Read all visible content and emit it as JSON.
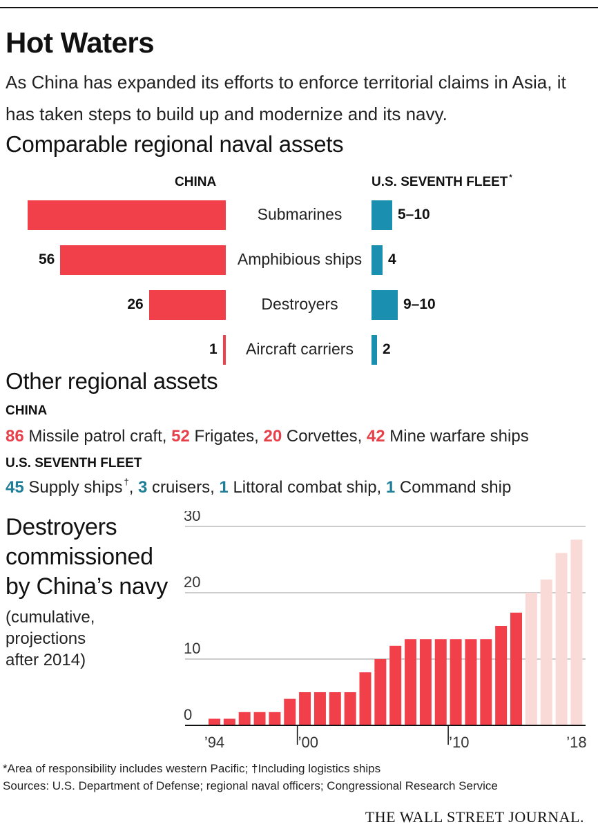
{
  "title": "Hot Waters",
  "subtitle": "As China has expanded its efforts to enforce territorial claims in Asia, it has taken steps to build up and modernize and its navy.",
  "naval_section": {
    "heading": "Comparable regional naval assets",
    "china_header": "CHINA",
    "us_header": "U.S. SEVENTH FLEET",
    "us_header_mark": "*",
    "rows": [
      {
        "label": "Submarines",
        "china_label": "",
        "us_label": "5–10"
      },
      {
        "label": "Amphibious ships",
        "china_label": "56",
        "us_label": "4"
      },
      {
        "label": "Destroyers",
        "china_label": "26",
        "us_label": "9–10"
      },
      {
        "label": "Aircraft carriers",
        "china_label": "1",
        "us_label": "2"
      }
    ]
  },
  "other_section": {
    "heading": "Other regional assets",
    "china_header": "CHINA",
    "china_items": [
      {
        "value": "86",
        "text": " Missile patrol craft,"
      },
      {
        "value": "52",
        "text": " Frigates,"
      },
      {
        "value": "20",
        "text": " Corvettes,"
      },
      {
        "value": "42",
        "text": " Mine warfare ships"
      }
    ],
    "us_header": "U.S. SEVENTH FLEET",
    "us_items": [
      {
        "value": "45",
        "text": " Supply ships",
        "mark": "†",
        "after": ","
      },
      {
        "value": "3",
        "text": " cruisers,",
        "mark": "",
        "after": ""
      },
      {
        "value": "1",
        "text": " Littoral combat ship,",
        "mark": "",
        "after": ""
      },
      {
        "value": "1",
        "text": " Command ship",
        "mark": "",
        "after": ""
      }
    ]
  },
  "destroyer_section": {
    "heading_lines": [
      "Destroyers",
      "commissioned",
      "by China’s navy"
    ],
    "note_lines": [
      "(cumulative,",
      "projections",
      "after 2014)"
    ]
  },
  "chart_data": [
    {
      "type": "bar",
      "orientation": "horizontal-butterfly",
      "title": "Comparable regional naval assets",
      "categories": [
        "Submarines",
        "Amphibious ships",
        "Destroyers",
        "Aircraft carriers"
      ],
      "series": [
        {
          "name": "CHINA",
          "values": [
            67,
            56,
            26,
            1
          ],
          "color": "#f2404a"
        },
        {
          "name": "U.S. SEVENTH FLEET",
          "values": [
            7.5,
            4,
            9.5,
            2
          ],
          "ranges": [
            [
              5,
              10
            ],
            [
              4,
              4
            ],
            [
              9,
              10
            ],
            [
              2,
              2
            ]
          ],
          "color": "#1a8fb0"
        }
      ]
    },
    {
      "type": "bar",
      "title": "Destroyers commissioned by China’s navy",
      "xlabel": "",
      "ylabel": "",
      "ylim": [
        0,
        30
      ],
      "yticks": [
        0,
        10,
        20,
        30
      ],
      "x": [
        1994,
        1995,
        1996,
        1997,
        1998,
        1999,
        2000,
        2001,
        2002,
        2003,
        2004,
        2005,
        2006,
        2007,
        2008,
        2009,
        2010,
        2011,
        2012,
        2013,
        2014,
        2015,
        2016,
        2017,
        2018
      ],
      "values": [
        1,
        1,
        2,
        2,
        2,
        4,
        5,
        5,
        5,
        5,
        8,
        10,
        12,
        13,
        13,
        13,
        13,
        13,
        13,
        15,
        17,
        20,
        22,
        26,
        28
      ],
      "projection_from": 2015,
      "xtick_labels": [
        {
          "year": 1994,
          "label": "’94"
        },
        {
          "year": 2000,
          "label": "’00"
        },
        {
          "year": 2010,
          "label": "’10"
        },
        {
          "year": 2018,
          "label": "’18"
        }
      ],
      "colors": {
        "actual": "#f2404a",
        "projection": "#fadad6"
      }
    }
  ],
  "footnotes": {
    "note": "*Area of responsibility includes western Pacific; †Including logistics ships",
    "sources": "Sources: U.S. Department of Defense; regional naval officers; Congressional Research Service"
  },
  "brand": "THE WALL STREET JOURNAL."
}
